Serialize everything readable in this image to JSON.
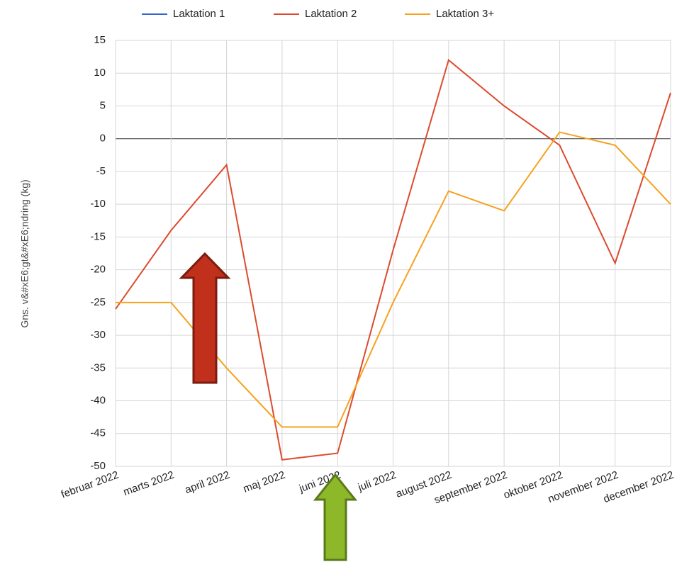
{
  "chart_data": {
    "type": "line",
    "y_label": "Gns. v&#xE6;gt&#xE6;ndring (kg)",
    "categories": [
      "februar 2022",
      "marts 2022",
      "april 2022",
      "maj 2022",
      "juni 2022",
      "juli 2022",
      "august 2022",
      "september 2022",
      "oktober 2022",
      "november 2022",
      "december 2022"
    ],
    "series": [
      {
        "name": "Laktation 1",
        "color": "#3366cc",
        "values": [
          null,
          null,
          null,
          null,
          null,
          null,
          null,
          null,
          null,
          null,
          null
        ]
      },
      {
        "name": "Laktation 2",
        "color": "#dc4b2f",
        "values": [
          -26,
          -14,
          -4,
          -49,
          -48,
          -17,
          12,
          5,
          -1,
          -19,
          7
        ]
      },
      {
        "name": "Laktation 3+",
        "color": "#f6a21f",
        "values": [
          -25,
          -25,
          -35,
          -44,
          -44,
          -25,
          -8,
          -11,
          1,
          -1,
          -10
        ]
      }
    ],
    "ylim": [
      -50,
      15
    ],
    "yticks": [
      -50,
      -45,
      -40,
      -35,
      -30,
      -25,
      -20,
      -15,
      -10,
      -5,
      0,
      5,
      10,
      15
    ],
    "grid": true,
    "legend": "top"
  }
}
